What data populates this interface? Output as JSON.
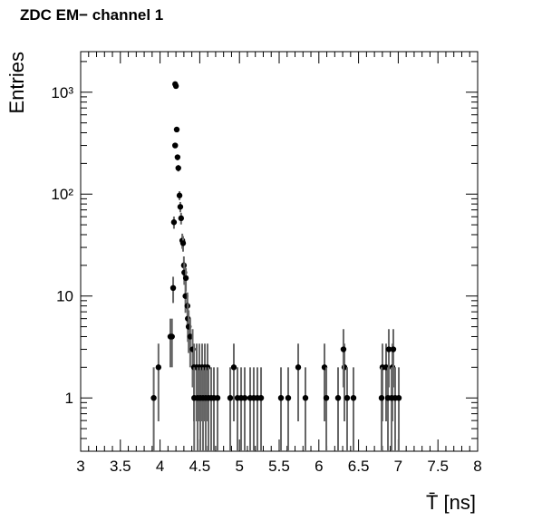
{
  "chart_data": {
    "type": "scatter",
    "title": "ZDC EM− channel 1",
    "x_label": "T̄ [ns]",
    "y_label": "Entries",
    "log_y": true,
    "color": "#000000",
    "error_color": "#666666",
    "xlim": [
      3,
      8
    ],
    "xticks": [
      3,
      3.5,
      4,
      4.5,
      5,
      5.5,
      6,
      6.5,
      7,
      7.5,
      8
    ],
    "ylim": [
      0.3,
      2500
    ],
    "yticks": [
      1,
      10,
      {
        "value": 100,
        "label": "10²"
      },
      {
        "value": 1000,
        "label": "10³"
      }
    ],
    "x": [
      3.92,
      3.98,
      4.13,
      4.15,
      4.165,
      4.175,
      4.19,
      4.2,
      4.19,
      4.21,
      4.22,
      4.23,
      4.245,
      4.255,
      4.265,
      4.28,
      4.29,
      4.3,
      4.305,
      4.325,
      4.32,
      4.345,
      4.35,
      4.36,
      4.38,
      4.41,
      4.427,
      4.461,
      4.495,
      4.53,
      4.564,
      4.598,
      4.929,
      5.74,
      6.071,
      6.322,
      6.801,
      6.847,
      6.927,
      6.31,
      6.881,
      6.938,
      4.43,
      4.473,
      4.507,
      4.541,
      4.575,
      4.61,
      4.644,
      4.678,
      4.724,
      4.884,
      4.975,
      5.021,
      5.066,
      5.135,
      5.18,
      5.226,
      5.272,
      5.523,
      5.614,
      5.831,
      6.094,
      6.242,
      6.356,
      6.436,
      6.79,
      6.87,
      6.916,
      6.961,
      7.007
    ],
    "values": [
      1,
      2,
      4,
      4,
      12,
      53,
      1200,
      1150,
      300,
      430,
      230,
      180,
      97,
      75,
      58,
      35,
      33,
      20,
      17,
      15,
      10,
      8,
      6,
      5,
      4,
      3,
      2,
      2,
      2,
      2,
      2,
      2,
      2,
      2,
      2,
      2,
      2,
      2,
      2,
      3,
      3,
      3,
      1,
      1,
      1,
      1,
      1,
      1,
      1,
      1,
      1,
      1,
      1,
      1,
      1,
      1,
      1,
      1,
      1,
      1,
      1,
      1,
      1,
      1,
      1,
      1,
      1,
      1,
      1,
      1,
      1
    ],
    "errors": [
      1,
      1.41,
      2,
      2,
      3.46,
      7.28,
      34.64,
      33.91,
      17.32,
      20.74,
      15.17,
      13.42,
      9.85,
      8.66,
      7.62,
      5.92,
      5.74,
      4.47,
      4.12,
      3.87,
      3.16,
      2.83,
      2.45,
      2.24,
      2,
      1.73,
      1.41,
      1.41,
      1.41,
      1.41,
      1.41,
      1.41,
      1.41,
      1.41,
      1.41,
      1.41,
      1.41,
      1.41,
      1.41,
      1.73,
      1.73,
      1.73,
      1,
      1,
      1,
      1,
      1,
      1,
      1,
      1,
      1,
      1,
      1,
      1,
      1,
      1,
      1,
      1,
      1,
      1,
      1,
      1,
      1,
      1,
      1,
      1,
      1,
      1,
      1,
      1,
      1
    ]
  }
}
